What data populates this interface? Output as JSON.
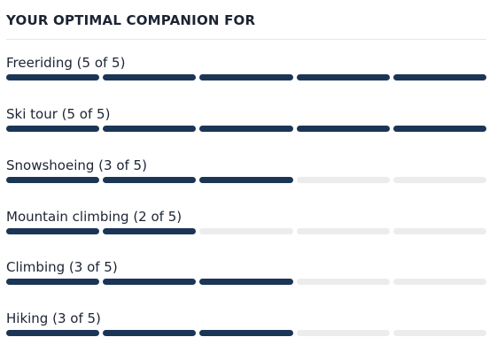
{
  "panel": {
    "title": "YOUR OPTIMAL COMPANION FOR"
  },
  "colors": {
    "filled": "#1b3556",
    "empty": "#ececed"
  },
  "activities": [
    {
      "label": "Freeriding (5 of 5)",
      "rating": 5,
      "max": 5
    },
    {
      "label": "Ski tour (5 of 5)",
      "rating": 5,
      "max": 5
    },
    {
      "label": "Snowshoeing (3 of 5)",
      "rating": 3,
      "max": 5
    },
    {
      "label": "Mountain climbing (2 of 5)",
      "rating": 2,
      "max": 5
    },
    {
      "label": "Climbing (3 of 5)",
      "rating": 3,
      "max": 5
    },
    {
      "label": "Hiking (3 of 5)",
      "rating": 3,
      "max": 5
    }
  ]
}
